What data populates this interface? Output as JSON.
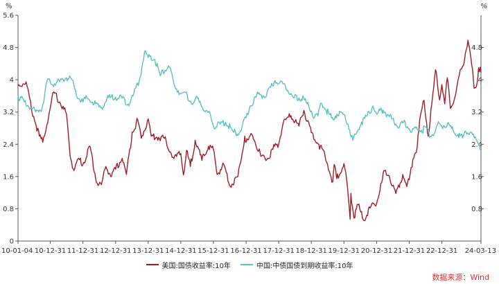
{
  "chart_data": {
    "type": "line",
    "unit_left": "%",
    "unit_right": "%",
    "ylim": [
      0,
      5.6
    ],
    "yticks": [
      "5.6",
      "4.8",
      "4",
      "3.2",
      "2.4",
      "1.6",
      "0.8",
      "0"
    ],
    "yticks_right": [
      "4.8",
      "4",
      "3.2",
      "2.4",
      "1.6",
      "0.8"
    ],
    "xlim": [
      "2010-01-04",
      "2024-03-13"
    ],
    "xticks": [
      {
        "date": "2010-01-04",
        "label": "10-01-04"
      },
      {
        "date": "2010-12-31",
        "label": "10-12-31"
      },
      {
        "date": "2011-12-31",
        "label": "11-12-31"
      },
      {
        "date": "2012-12-31",
        "label": "12-12-31"
      },
      {
        "date": "2013-12-31",
        "label": "13-12-31"
      },
      {
        "date": "2014-12-31",
        "label": "14-12-31"
      },
      {
        "date": "2015-12-31",
        "label": "15-12-31"
      },
      {
        "date": "2016-12-31",
        "label": "16-12-31"
      },
      {
        "date": "2017-12-31",
        "label": "17-12-31"
      },
      {
        "date": "2018-12-31",
        "label": "18-12-31"
      },
      {
        "date": "2019-12-31",
        "label": "19-12-31"
      },
      {
        "date": "2020-12-31",
        "label": "20-12-31"
      },
      {
        "date": "2021-12-31",
        "label": "21-12-31"
      },
      {
        "date": "2022-12-31",
        "label": "22-12-31"
      },
      {
        "date": "2024-03-13",
        "label": "24-03-13"
      }
    ],
    "grid": false,
    "legend_position": "bottom",
    "series": [
      {
        "name": "美国:国债收益率:10年",
        "color": "#a01c24",
        "points": [
          [
            "2010-01-04",
            3.85
          ],
          [
            "2010-04-05",
            3.95
          ],
          [
            "2010-06-01",
            3.3
          ],
          [
            "2010-08-31",
            2.6
          ],
          [
            "2010-10-08",
            2.45
          ],
          [
            "2010-12-31",
            3.3
          ],
          [
            "2011-02-08",
            3.7
          ],
          [
            "2011-04-15",
            3.45
          ],
          [
            "2011-06-30",
            3.15
          ],
          [
            "2011-08-10",
            2.1
          ],
          [
            "2011-09-22",
            1.75
          ],
          [
            "2011-11-15",
            2.05
          ],
          [
            "2011-12-31",
            1.9
          ],
          [
            "2012-03-20",
            2.35
          ],
          [
            "2012-06-01",
            1.45
          ],
          [
            "2012-07-25",
            1.4
          ],
          [
            "2012-09-14",
            1.85
          ],
          [
            "2012-11-15",
            1.6
          ],
          [
            "2012-12-31",
            1.78
          ],
          [
            "2013-03-15",
            2.05
          ],
          [
            "2013-05-01",
            1.65
          ],
          [
            "2013-07-05",
            2.7
          ],
          [
            "2013-09-06",
            3.0
          ],
          [
            "2013-10-15",
            2.55
          ],
          [
            "2013-12-31",
            3.03
          ],
          [
            "2014-02-03",
            2.6
          ],
          [
            "2014-06-30",
            2.55
          ],
          [
            "2014-10-15",
            2.05
          ],
          [
            "2014-12-31",
            2.17
          ],
          [
            "2015-01-30",
            1.64
          ],
          [
            "2015-03-06",
            2.25
          ],
          [
            "2015-04-17",
            1.85
          ],
          [
            "2015-06-10",
            2.5
          ],
          [
            "2015-08-24",
            2.0
          ],
          [
            "2015-11-06",
            2.35
          ],
          [
            "2015-12-31",
            2.27
          ],
          [
            "2016-02-11",
            1.65
          ],
          [
            "2016-04-25",
            1.9
          ],
          [
            "2016-07-08",
            1.36
          ],
          [
            "2016-09-30",
            1.6
          ],
          [
            "2016-12-16",
            2.6
          ],
          [
            "2016-12-31",
            2.45
          ],
          [
            "2017-03-13",
            2.62
          ],
          [
            "2017-06-14",
            2.1
          ],
          [
            "2017-09-08",
            2.05
          ],
          [
            "2017-11-15",
            2.35
          ],
          [
            "2017-12-31",
            2.41
          ],
          [
            "2018-02-21",
            2.95
          ],
          [
            "2018-05-17",
            3.11
          ],
          [
            "2018-08-15",
            2.85
          ],
          [
            "2018-10-08",
            3.24
          ],
          [
            "2018-12-31",
            2.69
          ],
          [
            "2019-03-25",
            2.4
          ],
          [
            "2019-06-03",
            2.1
          ],
          [
            "2019-08-28",
            1.47
          ],
          [
            "2019-09-13",
            1.9
          ],
          [
            "2019-10-10",
            1.55
          ],
          [
            "2019-12-31",
            1.92
          ],
          [
            "2020-01-31",
            1.5
          ],
          [
            "2020-03-09",
            0.54
          ],
          [
            "2020-03-18",
            1.18
          ],
          [
            "2020-04-21",
            0.57
          ],
          [
            "2020-06-05",
            0.9
          ],
          [
            "2020-08-04",
            0.52
          ],
          [
            "2020-10-20",
            0.82
          ],
          [
            "2020-12-31",
            0.93
          ],
          [
            "2021-02-25",
            1.45
          ],
          [
            "2021-03-31",
            1.74
          ],
          [
            "2021-05-20",
            1.62
          ],
          [
            "2021-08-03",
            1.18
          ],
          [
            "2021-10-20",
            1.65
          ],
          [
            "2021-12-03",
            1.35
          ],
          [
            "2021-12-31",
            1.52
          ],
          [
            "2022-02-10",
            2.03
          ],
          [
            "2022-03-31",
            2.35
          ],
          [
            "2022-05-06",
            3.12
          ],
          [
            "2022-06-14",
            3.49
          ],
          [
            "2022-08-01",
            2.6
          ],
          [
            "2022-09-30",
            3.8
          ],
          [
            "2022-10-21",
            4.25
          ],
          [
            "2022-12-06",
            3.5
          ],
          [
            "2022-12-31",
            3.88
          ],
          [
            "2023-02-01",
            3.4
          ],
          [
            "2023-03-02",
            4.05
          ],
          [
            "2023-04-06",
            3.29
          ],
          [
            "2023-05-31",
            3.6
          ],
          [
            "2023-07-07",
            4.06
          ],
          [
            "2023-08-21",
            4.34
          ],
          [
            "2023-10-19",
            4.98
          ],
          [
            "2023-11-30",
            4.37
          ],
          [
            "2023-12-27",
            3.79
          ],
          [
            "2024-01-31",
            3.95
          ],
          [
            "2024-02-15",
            4.3
          ],
          [
            "2024-03-13",
            4.18
          ]
        ]
      },
      {
        "name": "中国:中债国债到期收益率:10年",
        "color": "#5bc0c4",
        "points": [
          [
            "2010-01-04",
            3.6
          ],
          [
            "2010-03-15",
            3.45
          ],
          [
            "2010-06-01",
            3.3
          ],
          [
            "2010-07-20",
            3.2
          ],
          [
            "2010-09-30",
            3.3
          ],
          [
            "2010-11-22",
            3.95
          ],
          [
            "2010-12-31",
            3.95
          ],
          [
            "2011-02-15",
            3.9
          ],
          [
            "2011-04-15",
            3.95
          ],
          [
            "2011-06-30",
            4.05
          ],
          [
            "2011-09-01",
            4.0
          ],
          [
            "2011-10-20",
            3.6
          ],
          [
            "2011-12-31",
            3.45
          ],
          [
            "2012-02-15",
            3.55
          ],
          [
            "2012-04-15",
            3.45
          ],
          [
            "2012-07-18",
            3.3
          ],
          [
            "2012-10-15",
            3.55
          ],
          [
            "2012-12-31",
            3.57
          ],
          [
            "2013-03-15",
            3.55
          ],
          [
            "2013-05-20",
            3.4
          ],
          [
            "2013-07-15",
            3.6
          ],
          [
            "2013-09-30",
            4.05
          ],
          [
            "2013-11-20",
            4.7
          ],
          [
            "2013-12-31",
            4.55
          ],
          [
            "2014-03-15",
            4.5
          ],
          [
            "2014-05-15",
            4.1
          ],
          [
            "2014-08-15",
            4.35
          ],
          [
            "2014-10-15",
            3.9
          ],
          [
            "2014-12-31",
            3.65
          ],
          [
            "2015-03-15",
            3.6
          ],
          [
            "2015-05-15",
            3.4
          ],
          [
            "2015-07-15",
            3.55
          ],
          [
            "2015-09-30",
            3.2
          ],
          [
            "2015-11-30",
            3.1
          ],
          [
            "2015-12-31",
            2.85
          ],
          [
            "2016-03-15",
            2.9
          ],
          [
            "2016-05-15",
            2.95
          ],
          [
            "2016-08-15",
            2.7
          ],
          [
            "2016-10-20",
            2.7
          ],
          [
            "2016-12-31",
            3.05
          ],
          [
            "2017-02-15",
            3.35
          ],
          [
            "2017-05-15",
            3.65
          ],
          [
            "2017-08-15",
            3.6
          ],
          [
            "2017-11-20",
            3.98
          ],
          [
            "2017-12-31",
            3.9
          ],
          [
            "2018-03-15",
            3.85
          ],
          [
            "2018-06-15",
            3.55
          ],
          [
            "2018-08-15",
            3.55
          ],
          [
            "2018-10-15",
            3.5
          ],
          [
            "2018-12-31",
            3.23
          ],
          [
            "2019-01-15",
            3.1
          ],
          [
            "2019-03-15",
            3.1
          ],
          [
            "2019-04-22",
            3.42
          ],
          [
            "2019-06-15",
            3.25
          ],
          [
            "2019-08-15",
            3.05
          ],
          [
            "2019-10-15",
            3.15
          ],
          [
            "2019-12-31",
            3.14
          ],
          [
            "2020-02-15",
            2.9
          ],
          [
            "2020-04-08",
            2.5
          ],
          [
            "2020-05-15",
            2.65
          ],
          [
            "2020-07-15",
            2.95
          ],
          [
            "2020-09-15",
            3.1
          ],
          [
            "2020-11-20",
            3.35
          ],
          [
            "2020-12-31",
            3.15
          ],
          [
            "2021-03-15",
            3.25
          ],
          [
            "2021-05-15",
            3.1
          ],
          [
            "2021-07-15",
            2.95
          ],
          [
            "2021-09-15",
            2.85
          ],
          [
            "2021-11-15",
            2.95
          ],
          [
            "2021-12-31",
            2.78
          ],
          [
            "2022-01-28",
            2.7
          ],
          [
            "2022-03-15",
            2.8
          ],
          [
            "2022-05-15",
            2.75
          ],
          [
            "2022-07-15",
            2.8
          ],
          [
            "2022-08-23",
            2.6
          ],
          [
            "2022-10-15",
            2.7
          ],
          [
            "2022-11-30",
            2.92
          ],
          [
            "2022-12-31",
            2.84
          ],
          [
            "2023-03-06",
            2.92
          ],
          [
            "2023-05-15",
            2.7
          ],
          [
            "2023-06-30",
            2.65
          ],
          [
            "2023-08-21",
            2.56
          ],
          [
            "2023-09-28",
            2.7
          ],
          [
            "2023-11-20",
            2.7
          ],
          [
            "2023-12-29",
            2.56
          ],
          [
            "2024-02-05",
            2.44
          ],
          [
            "2024-03-13",
            2.32
          ]
        ]
      }
    ]
  },
  "source_text": "数据来源：Wind"
}
